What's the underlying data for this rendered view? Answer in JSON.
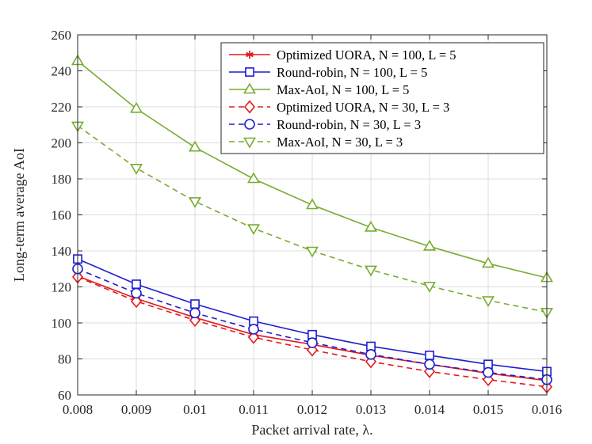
{
  "chart_data": {
    "type": "line",
    "xlabel": "Packet arrival rate, λ.",
    "ylabel": "Long-term average AoI",
    "xlim": [
      0.008,
      0.016
    ],
    "ylim": [
      60,
      260
    ],
    "grid": true,
    "legend_position": "top-right",
    "x": [
      0.008,
      0.009,
      0.01,
      0.011,
      0.012,
      0.013,
      0.014,
      0.015,
      0.016
    ],
    "xtick_labels": [
      "0.008",
      "0.009",
      "0.01",
      "0.011",
      "0.012",
      "0.013",
      "0.014",
      "0.015",
      "0.016"
    ],
    "ytick_labels": [
      "60",
      "80",
      "100",
      "120",
      "140",
      "160",
      "180",
      "200",
      "220",
      "240",
      "260"
    ],
    "series": [
      {
        "name": "Optimized UORA, N = 100, L = 5",
        "color": "#e31a1c",
        "dash": "solid",
        "marker": "asterisk",
        "values": [
          126,
          113.5,
          103,
          93.5,
          88,
          82,
          77,
          72,
          68
        ]
      },
      {
        "name": "Round-robin, N = 100, L = 5",
        "color": "#1f1fcc",
        "dash": "solid",
        "marker": "square",
        "values": [
          135.5,
          121.5,
          110.5,
          101,
          93.5,
          87,
          82,
          77,
          73
        ]
      },
      {
        "name": "Max-AoI, N = 100, L = 5",
        "color": "#77ac30",
        "dash": "solid",
        "marker": "triangle-up",
        "values": [
          245.5,
          219,
          197.5,
          180,
          165.5,
          153,
          142.5,
          133,
          125
        ]
      },
      {
        "name": "Optimized UORA, N = 30, L = 3",
        "color": "#e31a1c",
        "dash": "dashed",
        "marker": "diamond",
        "values": [
          125.5,
          112,
          101.5,
          92,
          85,
          78.5,
          73,
          68.5,
          64.5
        ]
      },
      {
        "name": "Round-robin, N = 30, L = 3",
        "color": "#1f1fcc",
        "dash": "dashed",
        "marker": "circle",
        "values": [
          130,
          116.5,
          105.5,
          96.5,
          89,
          82.5,
          77,
          72.5,
          68.5
        ]
      },
      {
        "name": "Max-AoI, N = 30, L = 3",
        "color": "#77ac30",
        "dash": "dashed",
        "marker": "triangle-down",
        "values": [
          209.5,
          186,
          167.5,
          152.5,
          140,
          129.5,
          120.5,
          112.5,
          106
        ]
      }
    ]
  }
}
